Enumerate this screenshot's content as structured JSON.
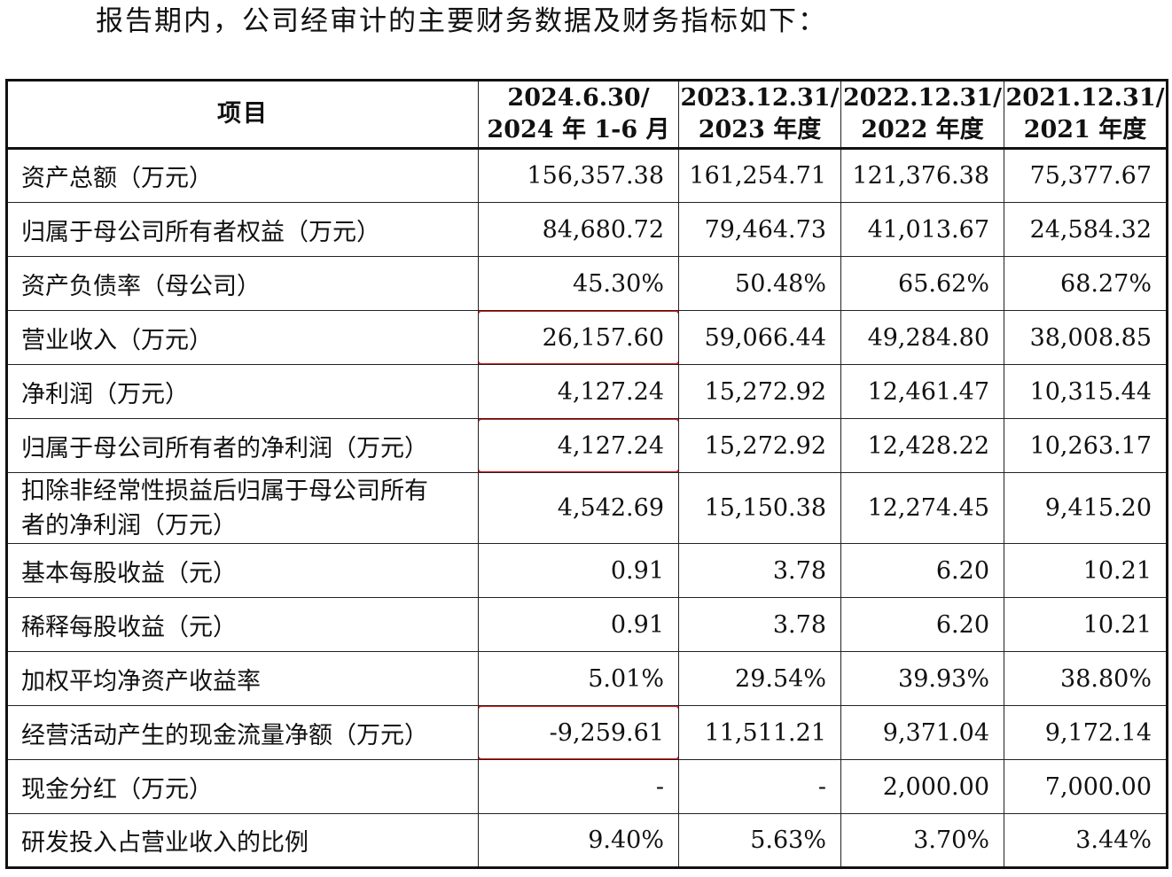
{
  "intro_text": "报告期内，公司经审计的主要财务数据及财务指标如下：",
  "headers": {
    "item": "项目",
    "periods": [
      [
        "2024.6.30/",
        "2024 年 1-6 月"
      ],
      [
        "2023.12.31/",
        "2023 年度"
      ],
      [
        "2022.12.31/",
        "2022 年度"
      ],
      [
        "2021.12.31/",
        "2021 年度"
      ]
    ]
  },
  "rows": [
    {
      "label": "资产总额（万元）",
      "values": [
        "156,357.38",
        "161,254.71",
        "121,376.38",
        "75,377.67"
      ]
    },
    {
      "label": "归属于母公司所有者权益（万元）",
      "values": [
        "84,680.72",
        "79,464.73",
        "41,013.67",
        "24,584.32"
      ]
    },
    {
      "label": "资产负债率（母公司）",
      "values": [
        "45.30%",
        "50.48%",
        "65.62%",
        "68.27%"
      ]
    },
    {
      "label": "营业收入（万元）",
      "values": [
        "26,157.60",
        "59,066.44",
        "49,284.80",
        "38,008.85"
      ]
    },
    {
      "label": "净利润（万元）",
      "values": [
        "4,127.24",
        "15,272.92",
        "12,461.47",
        "10,315.44"
      ]
    },
    {
      "label": "归属于母公司所有者的净利润（万元）",
      "values": [
        "4,127.24",
        "15,272.92",
        "12,428.22",
        "10,263.17"
      ]
    },
    {
      "label": "扣除非经常性损益后归属于母公司所有者的净利润（万元）",
      "values": [
        "4,542.69",
        "15,150.38",
        "12,274.45",
        "9,415.20"
      ]
    },
    {
      "label": "基本每股收益（元）",
      "values": [
        "0.91",
        "3.78",
        "6.20",
        "10.21"
      ]
    },
    {
      "label": "稀释每股收益（元）",
      "values": [
        "0.91",
        "3.78",
        "6.20",
        "10.21"
      ]
    },
    {
      "label": "加权平均净资产收益率",
      "values": [
        "5.01%",
        "29.54%",
        "39.93%",
        "38.80%"
      ]
    },
    {
      "label": "经营活动产生的现金流量净额（万元）",
      "values": [
        "-9,259.61",
        "11,511.21",
        "9,371.04",
        "9,172.14"
      ]
    },
    {
      "label": "现金分红（万元）",
      "values": [
        "-",
        "-",
        "2,000.00",
        "7,000.00"
      ]
    },
    {
      "label": "研发投入占营业收入的比例",
      "values": [
        "9.40%",
        "5.63%",
        "3.70%",
        "3.44%"
      ]
    }
  ],
  "highlight_color": "#e01919",
  "highlighted_rows": [
    "营业收入（万元）",
    "归属于母公司所有者的净利润（万元）",
    "经营活动产生的现金流量净额（万元）"
  ]
}
